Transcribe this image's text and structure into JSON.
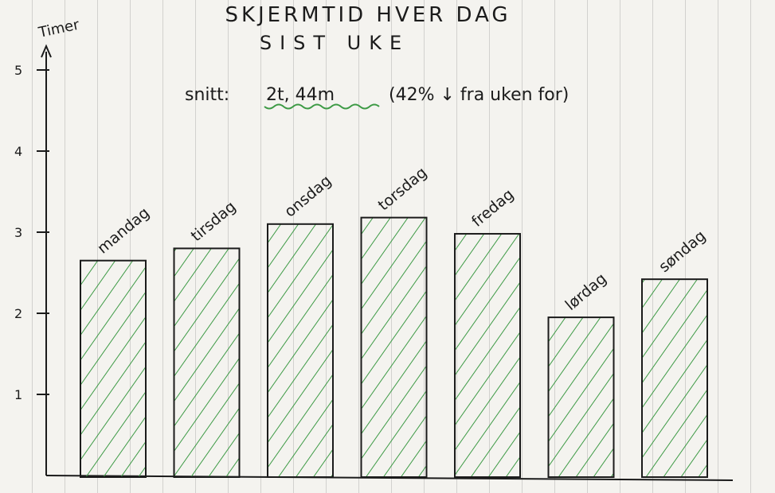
{
  "chart_data": {
    "type": "bar",
    "title": "SKJERMTID HVER DAG",
    "subtitle": "SIST UKE",
    "annotation": {
      "label": "snitt:",
      "value": "2t, 44m",
      "note": "(42% ↓ fra uken for)"
    },
    "ylabel": "Timer",
    "xlabel": "",
    "ylim": [
      0,
      5
    ],
    "yticks": [
      1,
      2,
      3,
      4,
      5
    ],
    "categories": [
      "mandag",
      "tirsdag",
      "onsdag",
      "torsdag",
      "fredag",
      "lørdag",
      "søndag"
    ],
    "values": [
      2.65,
      2.8,
      3.1,
      3.18,
      2.98,
      1.95,
      2.42
    ],
    "grid": false,
    "bar_fill": "hatched",
    "colors": {
      "ink": "#1b1b1b",
      "hatch": "#3d9a45",
      "underline": "#3d9a45"
    }
  }
}
